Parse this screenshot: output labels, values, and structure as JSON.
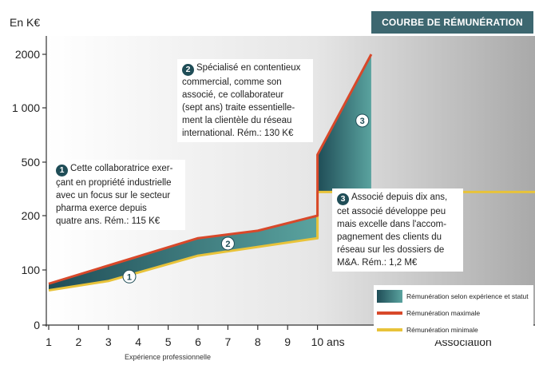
{
  "header": {
    "title": "COURBE DE RÉMUNÉRATION",
    "unit": "En K€"
  },
  "chart_data": {
    "type": "area",
    "title": "COURBE DE RÉMUNÉRATION",
    "ylabel": "En K€",
    "xlabel": "Expérience professionnelle",
    "y_scale": "log",
    "ylim": [
      0,
      2000
    ],
    "y_ticks": [
      {
        "value": 0,
        "label": "0"
      },
      {
        "value": 100,
        "label": "100"
      },
      {
        "value": 200,
        "label": "200"
      },
      {
        "value": 500,
        "label": "500"
      },
      {
        "value": 1000,
        "label": "1 000"
      },
      {
        "value": 2000,
        "label": "2000"
      }
    ],
    "x_ticks": [
      "1",
      "2",
      "3",
      "4",
      "5",
      "6",
      "7",
      "8",
      "9",
      "10 ans",
      "Association"
    ],
    "series": [
      {
        "name": "Rémunération maximale",
        "color": "#d8482a",
        "points": [
          [
            1,
            75
          ],
          [
            6,
            150
          ],
          [
            8,
            165
          ],
          [
            10,
            200
          ],
          [
            10,
            550
          ],
          [
            11.8,
            2000
          ]
        ]
      },
      {
        "name": "Rémunération minimale",
        "color": "#e8c33a",
        "points": [
          [
            1,
            63
          ],
          [
            3,
            80
          ],
          [
            6,
            120
          ],
          [
            10,
            150
          ],
          [
            10,
            300
          ],
          [
            11.8,
            300
          ]
        ]
      }
    ],
    "markers": [
      {
        "label": "1",
        "x": 3.7,
        "y": 88
      },
      {
        "label": "2",
        "x": 7,
        "y": 140
      },
      {
        "label": "3",
        "x": 11.5,
        "y": 850
      }
    ],
    "legend": {
      "position": "bottom-right"
    },
    "annotations": [
      {
        "num": "1",
        "lines": [
          "Cette collaboratrice exer-",
          "çant en propriété industrielle",
          "avec un focus sur le secteur",
          "pharma exerce depuis",
          "quatre ans. Rém.: 115 K€"
        ]
      },
      {
        "num": "2",
        "lines": [
          "Spécialisé en contentieux",
          "commercial, comme son",
          "associé, ce collaborateur",
          "(sept ans) traite essentielle-",
          "ment la clientèle du réseau",
          "international. Rém.: 130 K€"
        ]
      },
      {
        "num": "3",
        "lines": [
          "Associé depuis dix ans,",
          "cet associé développe peu",
          "mais excelle dans l'accom-",
          "pagnement des clients du",
          "réseau sur les dossiers de",
          "M&A. Rém.: 1,2 M€"
        ]
      }
    ]
  },
  "legend_items": {
    "area": "Rémunération selon expérience et statut",
    "max": "Rémunération maximale",
    "min": "Rémunération minimale"
  },
  "colors": {
    "accent": "#3d6770",
    "area_dark": "#1f4d57",
    "area_light": "#5aa39f",
    "max_line": "#d8482a",
    "min_line": "#e8c33a"
  }
}
